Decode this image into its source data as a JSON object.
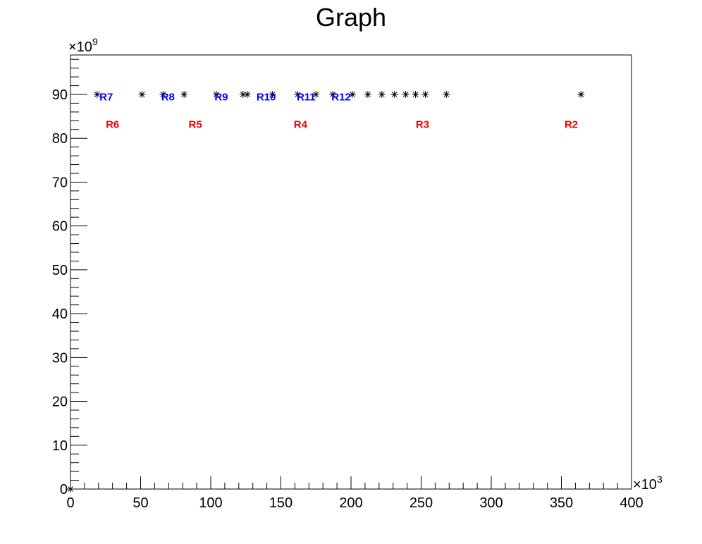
{
  "chart_data": {
    "type": "scatter",
    "title": "Graph",
    "xlabel": "",
    "ylabel": "",
    "xlim": [
      0,
      400
    ],
    "ylim": [
      0,
      99
    ],
    "x_multiplier": {
      "base": "×10",
      "exponent": "3"
    },
    "y_multiplier": {
      "base": "×10",
      "exponent": "9"
    },
    "x_ticks": [
      0,
      50,
      100,
      150,
      200,
      250,
      300,
      350,
      400
    ],
    "x_tick_labels": [
      "0",
      "50",
      "100",
      "150",
      "200",
      "250",
      "300",
      "350",
      "400"
    ],
    "y_ticks": [
      0,
      10,
      20,
      30,
      40,
      50,
      60,
      70,
      80,
      90
    ],
    "y_tick_labels": [
      "0",
      "10",
      "20",
      "30",
      "40",
      "50",
      "60",
      "70",
      "80",
      "90"
    ],
    "grid": false,
    "legend": "none",
    "marker": "asterisk",
    "series": [
      {
        "x": [
          0,
          19,
          51,
          66,
          81,
          104,
          123,
          126,
          144,
          162,
          175,
          187,
          201,
          212,
          222,
          231,
          239,
          246,
          253,
          268,
          364
        ],
        "y": [
          0,
          90,
          90,
          90,
          90,
          90,
          90,
          90,
          90,
          90,
          90,
          90,
          90,
          90,
          90,
          90,
          90,
          90,
          90,
          90,
          90
        ]
      }
    ],
    "annotations": [
      {
        "text": "R7",
        "x": 25.5,
        "y": 89.6,
        "color": "#0000ff"
      },
      {
        "text": "R8",
        "x": 69.5,
        "y": 89.6,
        "color": "#0000ff"
      },
      {
        "text": "R9",
        "x": 107.5,
        "y": 89.6,
        "color": "#0000ff"
      },
      {
        "text": "R10",
        "x": 139.5,
        "y": 89.6,
        "color": "#0000ff"
      },
      {
        "text": "R11",
        "x": 168,
        "y": 89.6,
        "color": "#0000ff"
      },
      {
        "text": "R12",
        "x": 193,
        "y": 89.6,
        "color": "#0000ff"
      },
      {
        "text": "R6",
        "x": 30,
        "y": 83.3,
        "color": "#ff0000"
      },
      {
        "text": "R5",
        "x": 89,
        "y": 83.3,
        "color": "#ff0000"
      },
      {
        "text": "R4",
        "x": 164,
        "y": 83.3,
        "color": "#ff0000"
      },
      {
        "text": "R3",
        "x": 251,
        "y": 83.3,
        "color": "#ff0000"
      },
      {
        "text": "R2",
        "x": 357,
        "y": 83.3,
        "color": "#ff0000"
      }
    ]
  }
}
